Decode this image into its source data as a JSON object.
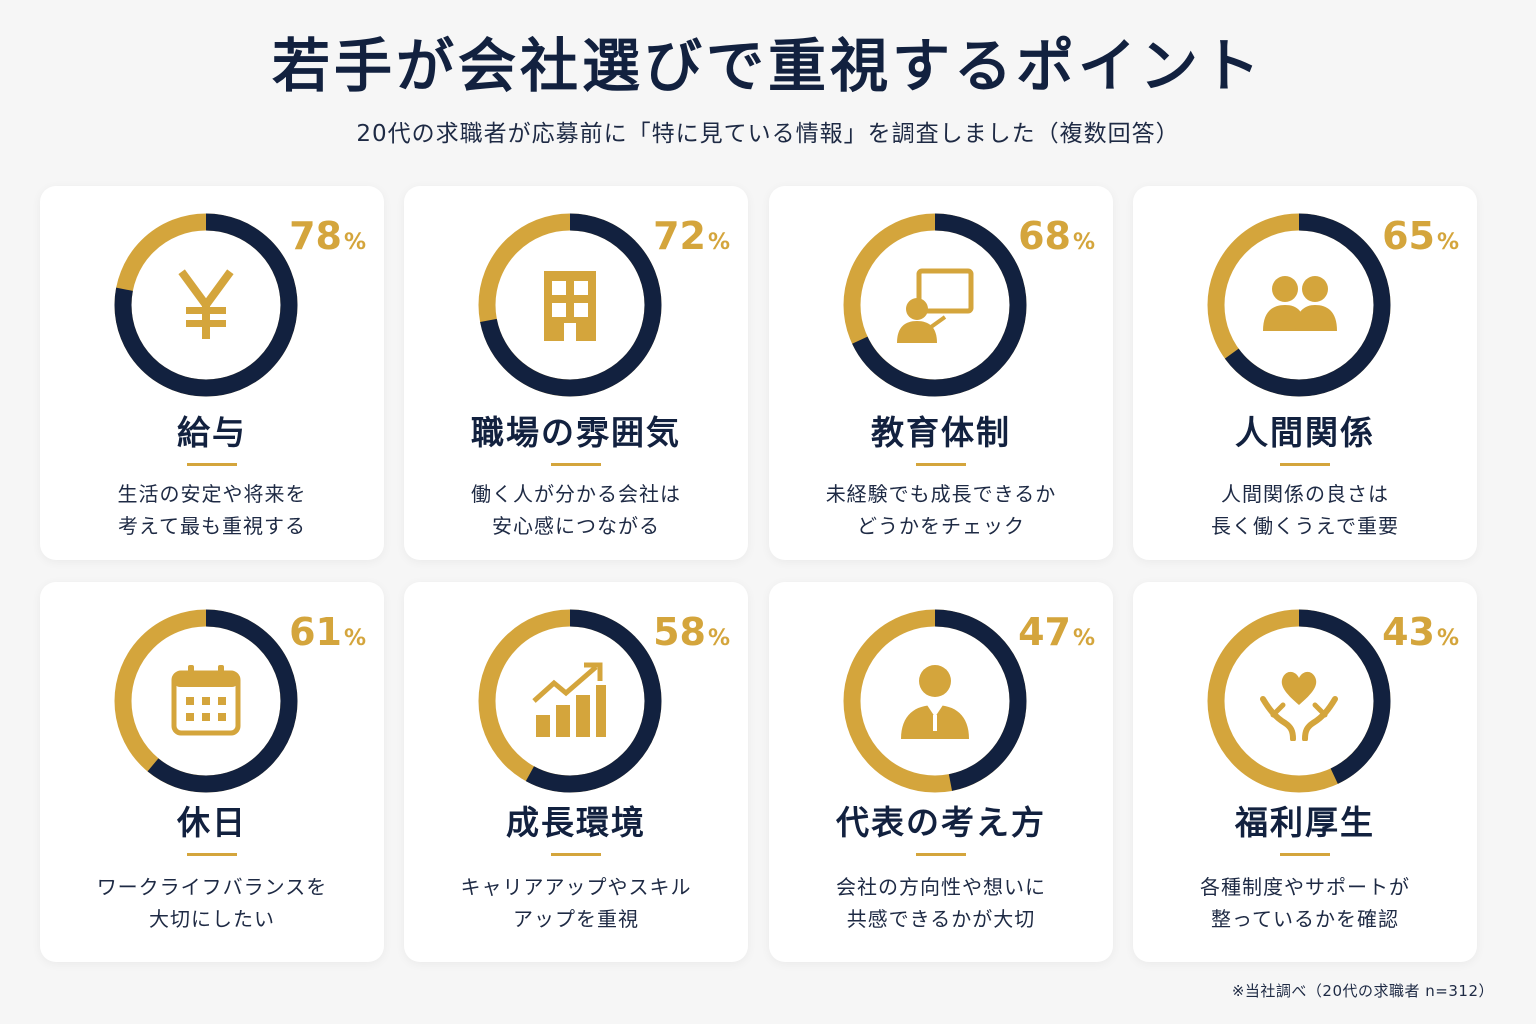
{
  "title": "若手が会社選びで重視するポイント",
  "subtitle": "20代の求職者が応募前に「特に見ている情報」を調査しました（複数回答）",
  "footnote": "※当社調べ（20代の求職者 n=312）",
  "colors": {
    "accent": "#d4a53c",
    "primary": "#12213f",
    "card": "#ffffff",
    "background": "#f6f6f6"
  },
  "chart_data": {
    "type": "pie",
    "title": "若手が会社選びで重視するポイント",
    "unit": "%",
    "categories": [
      "給与",
      "職場の雰囲気",
      "教育体制",
      "人間関係",
      "休日",
      "成長環境",
      "代表の考え方",
      "福利厚生"
    ],
    "values": [
      78,
      72,
      68,
      65,
      61,
      58,
      47,
      43
    ]
  },
  "cards": [
    {
      "label": "給与",
      "percent": 78,
      "percent_text": "78",
      "percent_symbol": "%",
      "icon": "yen-icon",
      "desc1": "生活の安定や将来を",
      "desc2": "考えて最も重視する"
    },
    {
      "label": "職場の雰囲気",
      "percent": 72,
      "percent_text": "72",
      "percent_symbol": "%",
      "icon": "building-icon",
      "desc1": "働く人が分かる会社は",
      "desc2": "安心感につながる"
    },
    {
      "label": "教育体制",
      "percent": 68,
      "percent_text": "68",
      "percent_symbol": "%",
      "icon": "teacher-board-icon",
      "desc1": "未経験でも成長できるか",
      "desc2": "どうかをチェック"
    },
    {
      "label": "人間関係",
      "percent": 65,
      "percent_text": "65",
      "percent_symbol": "%",
      "icon": "people-icon",
      "desc1": "人間関係の良さは",
      "desc2": "長く働くうえで重要"
    },
    {
      "label": "休日",
      "percent": 61,
      "percent_text": "61",
      "percent_symbol": "%",
      "icon": "calendar-icon",
      "desc1": "ワークライフバランスを",
      "desc2": "大切にしたい"
    },
    {
      "label": "成長環境",
      "percent": 58,
      "percent_text": "58",
      "percent_symbol": "%",
      "icon": "growth-chart-icon",
      "desc1": "キャリアアップやスキル",
      "desc2": "アップを重視"
    },
    {
      "label": "代表の考え方",
      "percent": 47,
      "percent_text": "47",
      "percent_symbol": "%",
      "icon": "executive-icon",
      "desc1": "会社の方向性や想いに",
      "desc2": "共感できるかが大切"
    },
    {
      "label": "福利厚生",
      "percent": 43,
      "percent_text": "43",
      "percent_symbol": "%",
      "icon": "heart-hands-icon",
      "desc1": "各種制度やサポートが",
      "desc2": "整っているかを確認"
    }
  ]
}
